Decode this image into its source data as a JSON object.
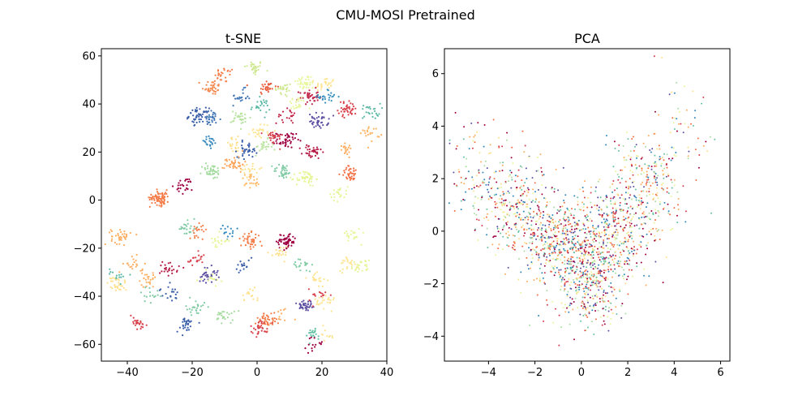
{
  "figure": {
    "suptitle": "CMU-MOSI Pretrained"
  },
  "chart_data": [
    {
      "type": "scatter",
      "title": "t-SNE",
      "xlabel": "",
      "ylabel": "",
      "xlim": [
        -48,
        40
      ],
      "ylim": [
        -67,
        63
      ],
      "xticks": [
        -40,
        -20,
        0,
        20,
        40
      ],
      "yticks": [
        -60,
        -40,
        -20,
        0,
        20,
        40,
        60
      ],
      "xtick_labels": [
        "−40",
        "−20",
        "0",
        "20",
        "40"
      ],
      "ytick_labels": [
        "−60",
        "−40",
        "−20",
        "0",
        "20",
        "40",
        "60"
      ],
      "grid": false,
      "colormap": "Spectral",
      "clusters": [
        {
          "x": -1,
          "y": 55,
          "color": "#cfe992",
          "n": 30
        },
        {
          "x": -10,
          "y": 52,
          "color": "#f67e4b",
          "n": 25
        },
        {
          "x": -14,
          "y": 47,
          "color": "#f3894e",
          "n": 35
        },
        {
          "x": 3,
          "y": 47,
          "color": "#e85b3a",
          "n": 30
        },
        {
          "x": 8,
          "y": 46,
          "color": "#cfe992",
          "n": 25
        },
        {
          "x": 15,
          "y": 49,
          "color": "#e8f69d",
          "n": 40
        },
        {
          "x": 21,
          "y": 48,
          "color": "#fee593",
          "n": 30
        },
        {
          "x": -5,
          "y": 43,
          "color": "#4075b4",
          "n": 20
        },
        {
          "x": 16,
          "y": 43,
          "color": "#c1274a",
          "n": 40
        },
        {
          "x": 22,
          "y": 43,
          "color": "#3b91bd",
          "n": 25
        },
        {
          "x": 28,
          "y": 38,
          "color": "#d8434e",
          "n": 40
        },
        {
          "x": 35,
          "y": 37,
          "color": "#5fbaa8",
          "n": 25
        },
        {
          "x": 1,
          "y": 39,
          "color": "#5fbaa8",
          "n": 25
        },
        {
          "x": 12,
          "y": 40,
          "color": "#e9f6a1",
          "n": 25
        },
        {
          "x": -18,
          "y": 35,
          "color": "#3b5fa8",
          "n": 50
        },
        {
          "x": -14,
          "y": 34,
          "color": "#4075b4",
          "n": 30
        },
        {
          "x": -5,
          "y": 34,
          "color": "#b9e3a0",
          "n": 30
        },
        {
          "x": 19,
          "y": 33,
          "color": "#5e4fa2",
          "n": 40
        },
        {
          "x": 9,
          "y": 35,
          "color": "#c1274a",
          "n": 20
        },
        {
          "x": 1,
          "y": 29,
          "color": "#fee593",
          "n": 25
        },
        {
          "x": 35,
          "y": 28,
          "color": "#fdb567",
          "n": 20
        },
        {
          "x": 9,
          "y": 25,
          "color": "#9e0142",
          "n": 45
        },
        {
          "x": 5,
          "y": 26,
          "color": "#d8434e",
          "n": 25
        },
        {
          "x": -15,
          "y": 24,
          "color": "#3288bd",
          "n": 20
        },
        {
          "x": -7,
          "y": 23,
          "color": "#fee08b",
          "n": 20
        },
        {
          "x": -3,
          "y": 21,
          "color": "#3b5fa8",
          "n": 35
        },
        {
          "x": 2,
          "y": 22,
          "color": "#bde4a4",
          "n": 25
        },
        {
          "x": 17,
          "y": 20,
          "color": "#b51f48",
          "n": 35
        },
        {
          "x": 27,
          "y": 22,
          "color": "#fdae61",
          "n": 20
        },
        {
          "x": -7,
          "y": 15,
          "color": "#fca55d",
          "n": 40
        },
        {
          "x": -2,
          "y": 13,
          "color": "#fee08b",
          "n": 20
        },
        {
          "x": 8,
          "y": 12,
          "color": "#80cba4",
          "n": 35
        },
        {
          "x": 15,
          "y": 9,
          "color": "#e6f598",
          "n": 50
        },
        {
          "x": -14,
          "y": 12,
          "color": "#a5db9f",
          "n": 40
        },
        {
          "x": 29,
          "y": 11,
          "color": "#f46d43",
          "n": 35
        },
        {
          "x": -2,
          "y": 8,
          "color": "#fdbf6f",
          "n": 25
        },
        {
          "x": -22,
          "y": 6,
          "color": "#9e0142",
          "n": 25
        },
        {
          "x": -30,
          "y": 1,
          "color": "#f47c48",
          "n": 80
        },
        {
          "x": 25,
          "y": 3,
          "color": "#e6f598",
          "n": 25
        },
        {
          "x": -42,
          "y": -15,
          "color": "#fdae61",
          "n": 40
        },
        {
          "x": -21,
          "y": -12,
          "color": "#80cba4",
          "n": 25
        },
        {
          "x": -18,
          "y": -12,
          "color": "#f67e4b",
          "n": 20
        },
        {
          "x": -9,
          "y": -14,
          "color": "#3288bd",
          "n": 15
        },
        {
          "x": -12,
          "y": -17,
          "color": "#e6f598",
          "n": 20
        },
        {
          "x": -2,
          "y": -17,
          "color": "#f47c48",
          "n": 40
        },
        {
          "x": 9,
          "y": -17,
          "color": "#9e0142",
          "n": 60
        },
        {
          "x": 29,
          "y": -14,
          "color": "#e6f598",
          "n": 20
        },
        {
          "x": 7,
          "y": -22,
          "color": "#fee08b",
          "n": 20
        },
        {
          "x": -38,
          "y": -27,
          "color": "#fdae61",
          "n": 20
        },
        {
          "x": -27,
          "y": -28,
          "color": "#b51f48",
          "n": 25
        },
        {
          "x": -19,
          "y": -25,
          "color": "#d8434e",
          "n": 20
        },
        {
          "x": -4,
          "y": -28,
          "color": "#3b5fa8",
          "n": 15
        },
        {
          "x": 14,
          "y": -27,
          "color": "#80cba4",
          "n": 20
        },
        {
          "x": 28,
          "y": -26,
          "color": "#fee593",
          "n": 20
        },
        {
          "x": 32,
          "y": -28,
          "color": "#e6f598",
          "n": 25
        },
        {
          "x": -43,
          "y": -31,
          "color": "#5fbaa8",
          "n": 15
        },
        {
          "x": -34,
          "y": -33,
          "color": "#fdae61",
          "n": 25
        },
        {
          "x": -15,
          "y": -31,
          "color": "#5e4fa2",
          "n": 35
        },
        {
          "x": -14,
          "y": -33,
          "color": "#e6f598",
          "n": 15
        },
        {
          "x": 18,
          "y": -32,
          "color": "#fee593",
          "n": 20
        },
        {
          "x": -43,
          "y": -35,
          "color": "#fee08b",
          "n": 30
        },
        {
          "x": -27,
          "y": -39,
          "color": "#3b5fa8",
          "n": 20
        },
        {
          "x": -2,
          "y": -39,
          "color": "#fee08b",
          "n": 15
        },
        {
          "x": -33,
          "y": -39,
          "color": "#80cba4",
          "n": 15
        },
        {
          "x": 15,
          "y": -44,
          "color": "#5e4fa2",
          "n": 40
        },
        {
          "x": 21,
          "y": -42,
          "color": "#fee593",
          "n": 25
        },
        {
          "x": 19,
          "y": -40,
          "color": "#d8434e",
          "n": 15
        },
        {
          "x": -19,
          "y": -45,
          "color": "#80cba4",
          "n": 25
        },
        {
          "x": -10,
          "y": -48,
          "color": "#a5db9f",
          "n": 25
        },
        {
          "x": 3,
          "y": -50,
          "color": "#f47c48",
          "n": 45
        },
        {
          "x": 1,
          "y": -53,
          "color": "#d8434e",
          "n": 30
        },
        {
          "x": 9,
          "y": -47,
          "color": "#fdae61",
          "n": 10
        },
        {
          "x": -37,
          "y": -51,
          "color": "#d8434e",
          "n": 25
        },
        {
          "x": -22,
          "y": -52,
          "color": "#3b5fa8",
          "n": 30
        },
        {
          "x": 17,
          "y": -56,
          "color": "#66c2a5",
          "n": 20
        },
        {
          "x": 21,
          "y": -56,
          "color": "#fee593",
          "n": 10
        },
        {
          "x": 18,
          "y": -60,
          "color": "#9e0142",
          "n": 15
        }
      ]
    },
    {
      "type": "scatter",
      "title": "PCA",
      "xlabel": "",
      "ylabel": "",
      "xlim": [
        -5.9,
        6.4
      ],
      "ylim": [
        -4.95,
        6.95
      ],
      "xticks": [
        -4,
        -2,
        0,
        2,
        4,
        6
      ],
      "yticks": [
        -4,
        -2,
        0,
        2,
        4,
        6
      ],
      "xtick_labels": [
        "−4",
        "−2",
        "0",
        "2",
        "4",
        "6"
      ],
      "ytick_labels": [
        "−4",
        "−2",
        "0",
        "2",
        "4",
        "6"
      ],
      "grid": false,
      "colormap": "Spectral",
      "palette": [
        "#9e0142",
        "#d53e4f",
        "#f46d43",
        "#fdae61",
        "#fee08b",
        "#e6f598",
        "#abdda4",
        "#66c2a5",
        "#3288bd",
        "#5e4fa2"
      ],
      "regions": [
        {
          "cx": -3.0,
          "cy": 1.0,
          "sx": 1.1,
          "sy": 0.9,
          "n": 320,
          "rot": -0.6
        },
        {
          "cx": -1.3,
          "cy": -0.3,
          "sx": 0.8,
          "sy": 0.7,
          "n": 300,
          "rot": 0.0
        },
        {
          "cx": 0.3,
          "cy": -1.0,
          "sx": 0.9,
          "sy": 0.9,
          "n": 500,
          "rot": 0.0
        },
        {
          "cx": 0.3,
          "cy": -2.4,
          "sx": 0.7,
          "sy": 0.8,
          "n": 160,
          "rot": 0.0
        },
        {
          "cx": 1.7,
          "cy": 0.2,
          "sx": 0.7,
          "sy": 0.9,
          "n": 260,
          "rot": 0.8
        },
        {
          "cx": 2.9,
          "cy": 1.9,
          "sx": 0.8,
          "sy": 0.9,
          "n": 240,
          "rot": 0.7
        },
        {
          "cx": 4.4,
          "cy": 4.1,
          "sx": 0.6,
          "sy": 1.1,
          "n": 50,
          "rot": 0.5
        },
        {
          "cx": -4.5,
          "cy": 2.6,
          "sx": 0.6,
          "sy": 0.8,
          "n": 60,
          "rot": 0.0
        }
      ]
    }
  ]
}
